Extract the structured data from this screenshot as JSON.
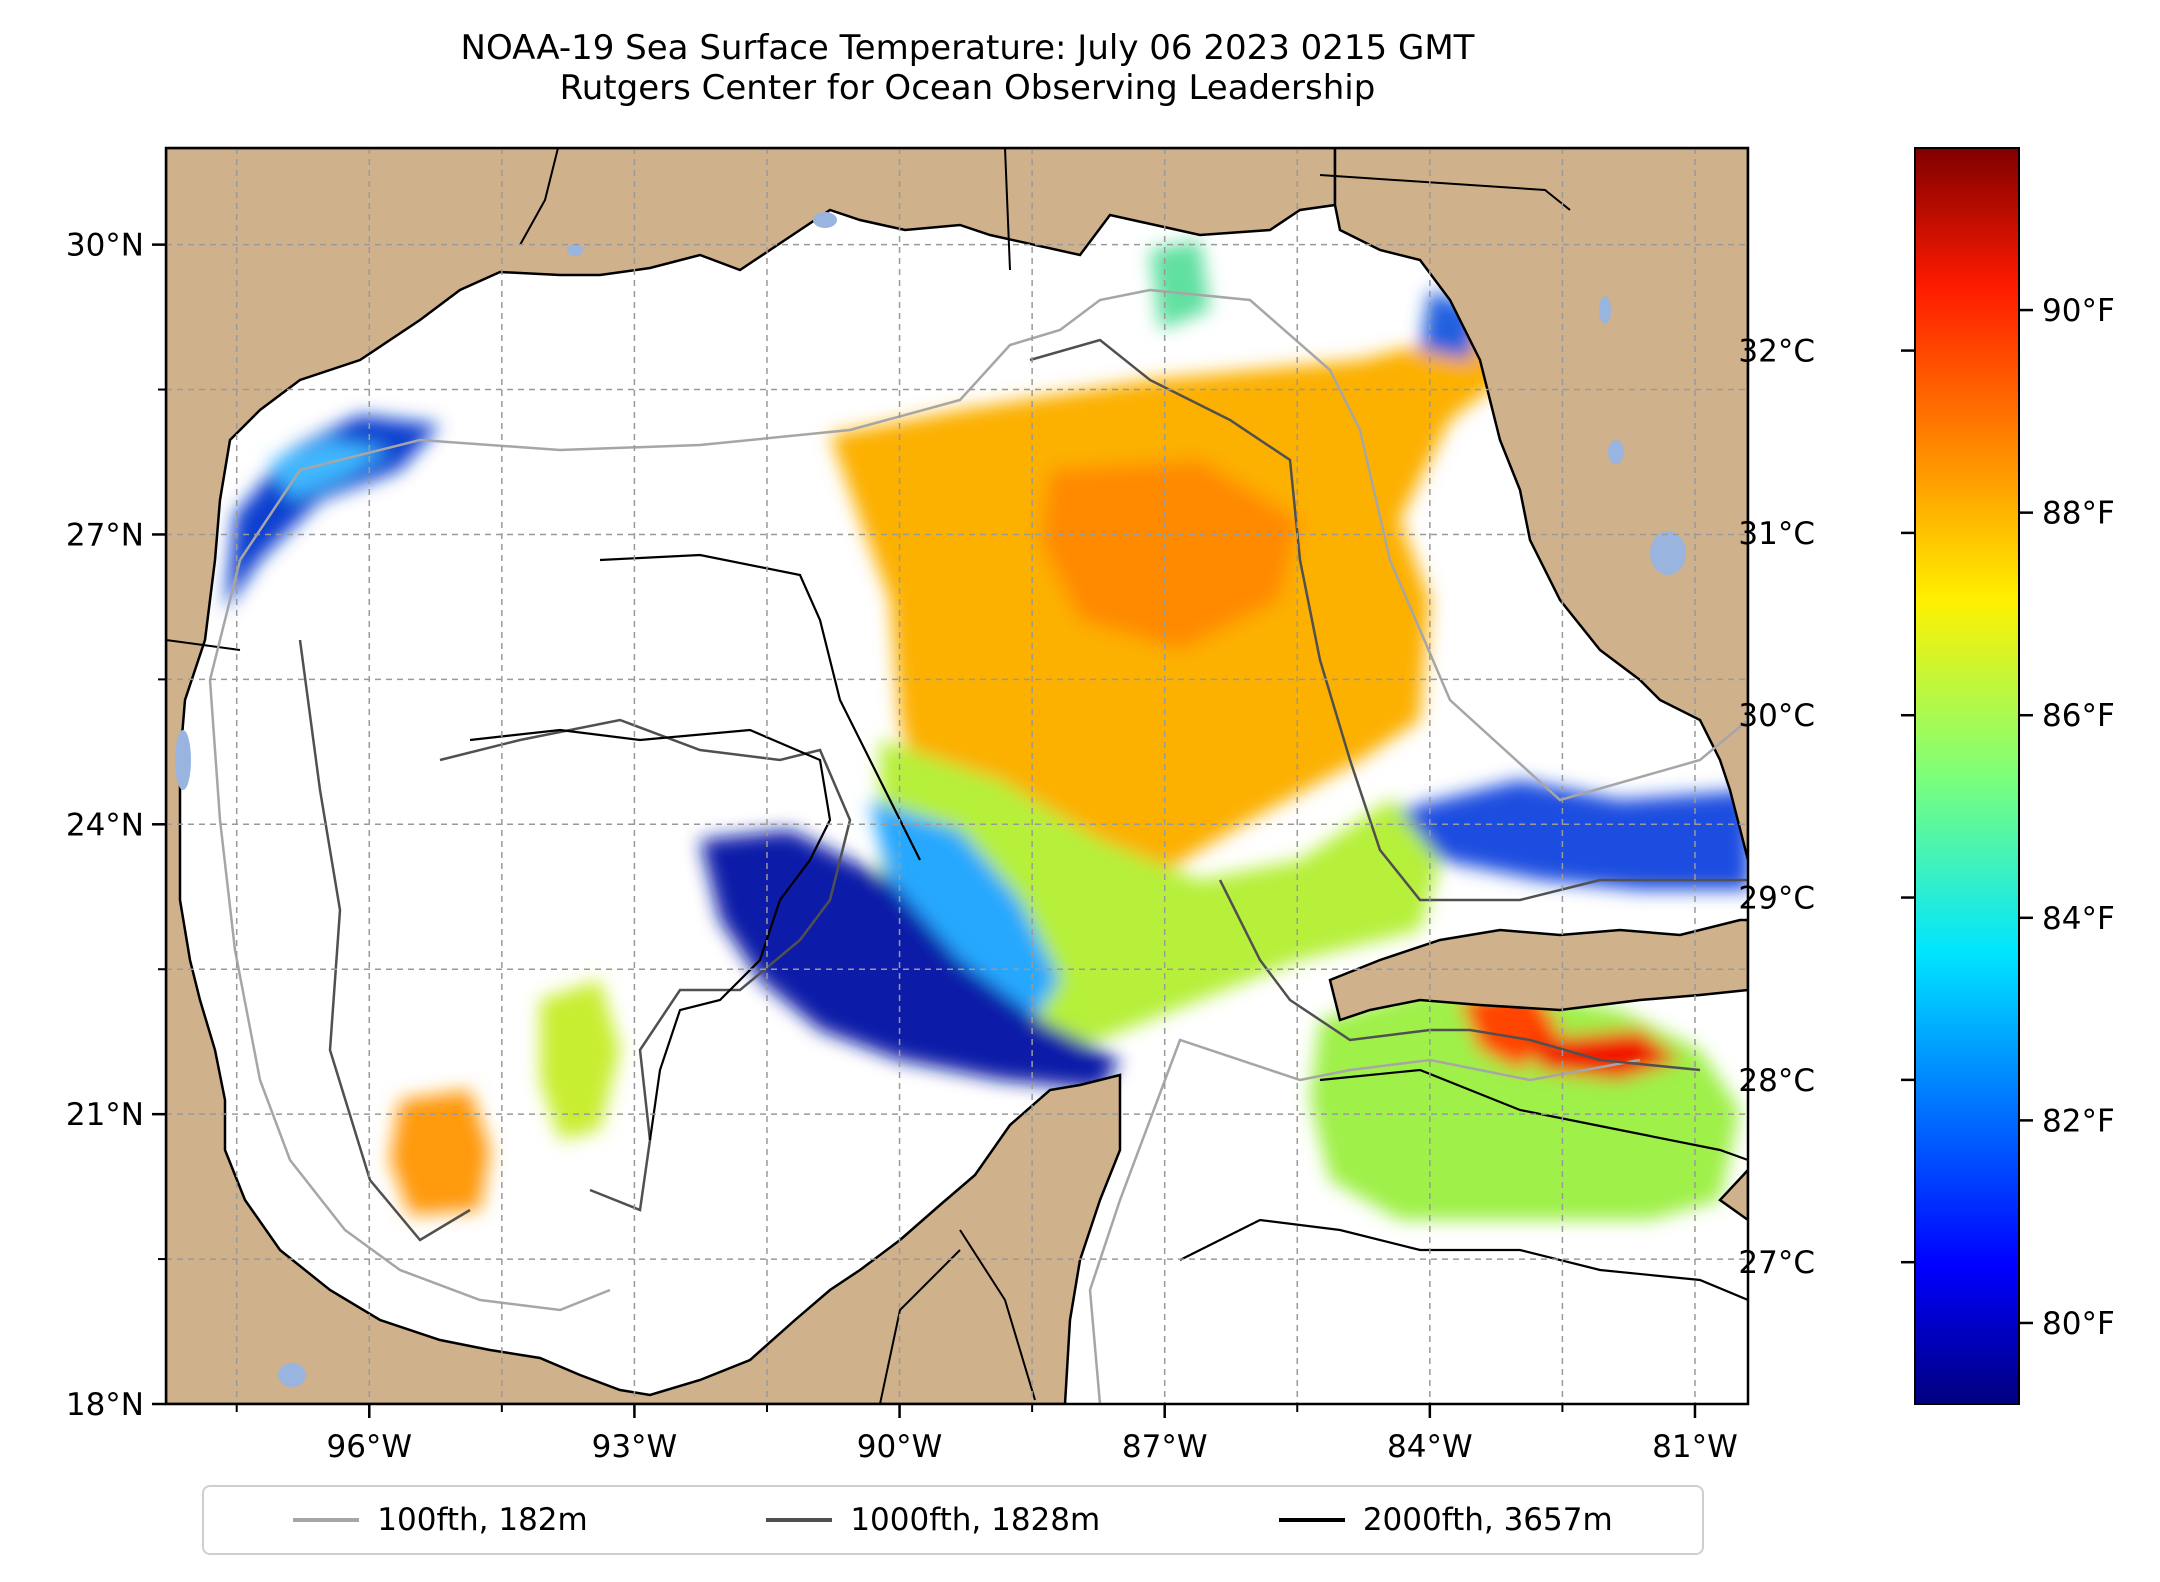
{
  "title": "NOAA-19 Sea Surface Temperature: July 06 2023 0215 GMT",
  "subtitle": "Rutgers Center for Ocean Observing Leadership",
  "map": {
    "lon_ticks": [
      {
        "value": -96,
        "label": "96°W"
      },
      {
        "value": -93,
        "label": "93°W"
      },
      {
        "value": -90,
        "label": "90°W"
      },
      {
        "value": -87,
        "label": "87°W"
      },
      {
        "value": -84,
        "label": "84°W"
      },
      {
        "value": -81,
        "label": "81°W"
      }
    ],
    "lat_ticks": [
      {
        "value": 18,
        "label": "18°N"
      },
      {
        "value": 21,
        "label": "21°N"
      },
      {
        "value": 24,
        "label": "24°N"
      },
      {
        "value": 27,
        "label": "27°N"
      },
      {
        "value": 30,
        "label": "30°N"
      }
    ],
    "lon_range": [
      -98.3,
      -80.4
    ],
    "lat_range": [
      18.0,
      31.0
    ],
    "grid": true,
    "colors": {
      "land": "#cfb18b",
      "water_bodies": "#9ab4e0",
      "no_data": "#ffffff"
    }
  },
  "colorbar": {
    "colormap": "jet",
    "celsius_ticks": [
      {
        "value": 27,
        "label": "27°C"
      },
      {
        "value": 28,
        "label": "28°C"
      },
      {
        "value": 29,
        "label": "29°C"
      },
      {
        "value": 30,
        "label": "30°C"
      },
      {
        "value": 31,
        "label": "31°C"
      },
      {
        "value": 32,
        "label": "32°C"
      }
    ],
    "fahrenheit_ticks": [
      {
        "value": 80,
        "label": "80°F"
      },
      {
        "value": 82,
        "label": "82°F"
      },
      {
        "value": 84,
        "label": "84°F"
      },
      {
        "value": 86,
        "label": "86°F"
      },
      {
        "value": 88,
        "label": "88°F"
      },
      {
        "value": 90,
        "label": "90°F"
      }
    ],
    "range_f": [
      79.2,
      91.6
    ]
  },
  "legend": {
    "placement": "bottom",
    "items": [
      {
        "label": "100fth, 182m",
        "color": "#a6a6a6"
      },
      {
        "label": "1000fth, 1828m",
        "color": "#505050"
      },
      {
        "label": "2000fth, 3657m",
        "color": "#000000"
      }
    ]
  }
}
